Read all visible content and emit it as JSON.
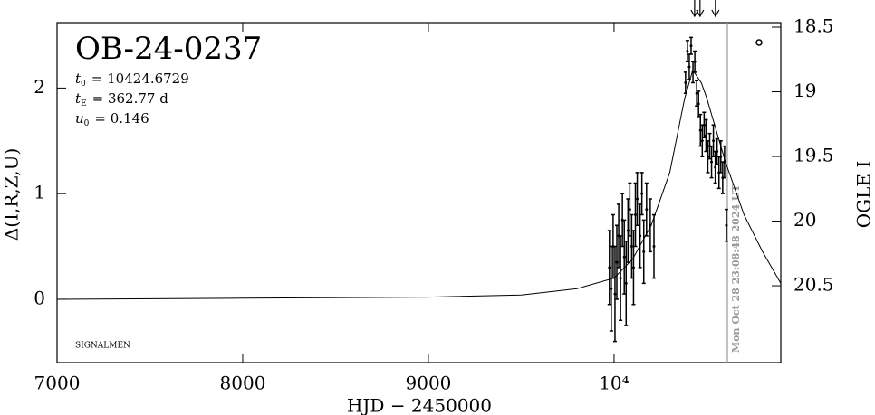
{
  "chart_data": {
    "type": "scatter",
    "title": "OB-24-0237",
    "parameters": [
      {
        "symbol": "t",
        "subscript": "0",
        "text": "= 10424.6729"
      },
      {
        "symbol": "t",
        "subscript": "E",
        "text": "= 362.77 d"
      },
      {
        "symbol": "u",
        "subscript": "0",
        "text": "= 0.146"
      }
    ],
    "annotation": "SIGNALMEN",
    "x_label": "HJD − 2450000",
    "y_label": "Δ(I,R,Z,U)",
    "y2_label": "OGLE I",
    "xlim": [
      7000,
      10898
    ],
    "xticks": [
      7000,
      8000,
      9000,
      {
        "value": 10000,
        "label": "10⁴"
      }
    ],
    "ylim": [
      -0.6,
      2.62
    ],
    "yticks": [
      0,
      1,
      2
    ],
    "y2lim": [
      21.094,
      18.465
    ],
    "y2ticks": [
      18.5,
      19,
      19.5,
      20,
      20.5
    ],
    "now_line": {
      "x": 10610,
      "label": "Mon Oct 28 23:08:48 2024 UT",
      "color": "#999999"
    },
    "alerts_x": [
      10434,
      10463,
      10546
    ],
    "series": [
      {
        "type": "line",
        "color": "#000000",
        "x": [
          7000,
          8000,
          9000,
          9500,
          9800,
          10000,
          10100,
          10200,
          10300,
          10380,
          10424,
          10470,
          10500,
          10600,
          10700,
          10800,
          10898
        ],
        "values": [
          0,
          0.01,
          0.02,
          0.04,
          0.1,
          0.2,
          0.38,
          0.7,
          1.2,
          1.9,
          2.17,
          2.05,
          1.9,
          1.3,
          0.8,
          0.45,
          0.15
        ]
      },
      {
        "type": "errorbar",
        "color": "#000000",
        "x": [
          9975,
          9985,
          9995,
          10005,
          10015,
          10025,
          10035,
          10045,
          10055,
          10065,
          10075,
          10085,
          10095,
          10105,
          10115,
          10125,
          10140,
          10150,
          10160,
          10175,
          10195,
          10215,
          10385,
          10395,
          10405,
          10415,
          10425,
          10435,
          10445,
          10455,
          10465,
          10475,
          10485,
          10495,
          10505,
          10515,
          10525,
          10535,
          10545,
          10555,
          10565,
          10575,
          10585,
          10595,
          10605
        ],
        "values": [
          0.3,
          0.1,
          0.5,
          0.05,
          0.35,
          0.6,
          0.2,
          0.75,
          0.4,
          0.15,
          0.65,
          0.85,
          0.5,
          0.3,
          0.8,
          0.95,
          0.6,
          1.0,
          0.45,
          0.85,
          0.7,
          0.5,
          2.05,
          2.35,
          2.2,
          2.4,
          2.15,
          2.25,
          1.95,
          1.85,
          1.6,
          1.5,
          1.65,
          1.55,
          1.35,
          1.45,
          1.3,
          1.5,
          1.25,
          1.4,
          1.2,
          1.35,
          1.15,
          1.3,
          0.7
        ],
        "errors": [
          0.35,
          0.4,
          0.3,
          0.45,
          0.35,
          0.3,
          0.4,
          0.25,
          0.35,
          0.4,
          0.3,
          0.25,
          0.3,
          0.35,
          0.3,
          0.25,
          0.3,
          0.2,
          0.3,
          0.25,
          0.25,
          0.3,
          0.1,
          0.1,
          0.12,
          0.08,
          0.1,
          0.1,
          0.12,
          0.12,
          0.15,
          0.15,
          0.12,
          0.15,
          0.15,
          0.12,
          0.15,
          0.15,
          0.15,
          0.12,
          0.15,
          0.15,
          0.15,
          0.15,
          0.15
        ]
      }
    ]
  }
}
